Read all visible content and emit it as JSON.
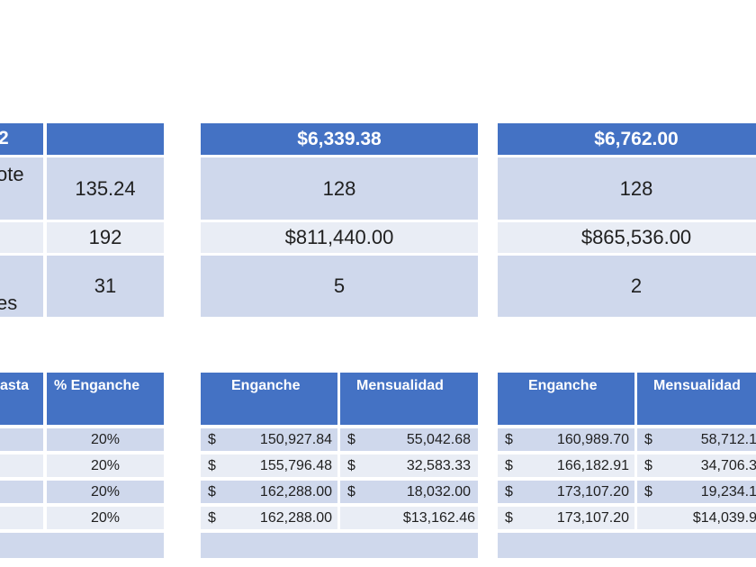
{
  "top_left": {
    "header": "2",
    "row1_label": "ote",
    "row1_value": "135.24",
    "row2_value": "192",
    "row3_label": "es",
    "row3_value": "31"
  },
  "top_mid": {
    "header": "$6,339.38",
    "row1": "128",
    "row2": "$811,440.00",
    "row3": "5"
  },
  "top_right": {
    "header": "$6,762.00",
    "row1": "128",
    "row2": "$865,536.00",
    "row3": "2"
  },
  "bottom_left": {
    "header_partial": "asta",
    "header_pct": "% Enganche",
    "rows": [
      "20%",
      "20%",
      "20%",
      "20%"
    ]
  },
  "bottom_mid": {
    "header_enganche": "Enganche",
    "header_mensualidad": "Mensualidad",
    "currency": "$",
    "rows": [
      {
        "enganche": "150,927.84",
        "mensualidad": "55,042.68",
        "mens_dollar": "$"
      },
      {
        "enganche": "155,796.48",
        "mensualidad": "32,583.33",
        "mens_dollar": "$"
      },
      {
        "enganche": "162,288.00",
        "mensualidad": "18,032.00",
        "mens_dollar": "$"
      },
      {
        "enganche": "162,288.00",
        "mensualidad": "$13,162.46",
        "mens_dollar": ""
      }
    ]
  },
  "bottom_right": {
    "header_enganche": "Enganche",
    "header_mensualidad": "Mensualidad",
    "currency": "$",
    "rows": [
      {
        "enganche": "160,989.70",
        "mensualidad": "58,712.1",
        "mens_dollar": "$"
      },
      {
        "enganche": "166,182.91",
        "mensualidad": "34,706.3",
        "mens_dollar": "$"
      },
      {
        "enganche": "173,107.20",
        "mensualidad": "19,234.1",
        "mens_dollar": "$"
      },
      {
        "enganche": "173,107.20",
        "mensualidad": "$14,039.9",
        "mens_dollar": ""
      }
    ]
  }
}
